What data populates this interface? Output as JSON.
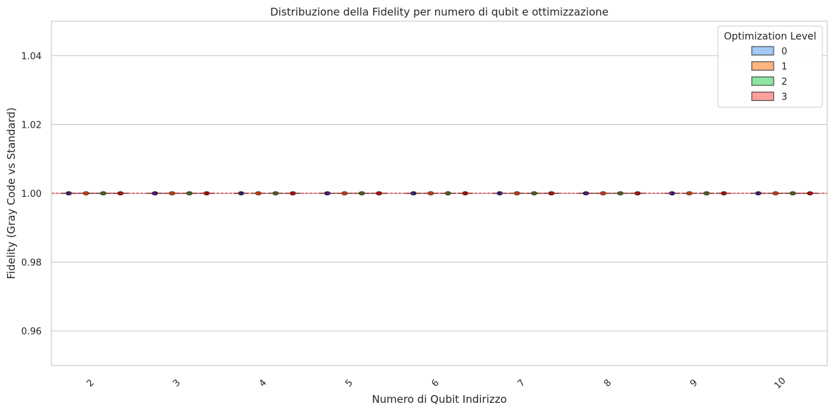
{
  "chart_data": {
    "type": "box",
    "title": "Distribuzione della Fidelity per numero di qubit e ottimizzazione",
    "xlabel": "Numero di Qubit Indirizzo",
    "ylabel": "Fidelity (Gray Code vs Standard)",
    "categories": [
      "2",
      "3",
      "4",
      "5",
      "6",
      "7",
      "8",
      "9",
      "10"
    ],
    "ylim": [
      0.95,
      1.05
    ],
    "yticks": [
      0.96,
      0.98,
      1.0,
      1.02,
      1.04
    ],
    "ytick_labels": [
      "0.96",
      "0.98",
      "1.00",
      "1.02",
      "1.04"
    ],
    "grid": true,
    "legend": {
      "title": "Optimization Level",
      "position": "top-right"
    },
    "reference_line": {
      "y": 1.0,
      "color": "#d62728",
      "style": "dashed"
    },
    "series": [
      {
        "name": "0",
        "values": [
          1.0,
          1.0,
          1.0,
          1.0,
          1.0,
          1.0,
          1.0,
          1.0,
          1.0
        ],
        "box_color": "#a1c9f4",
        "point_color": "#001c7f"
      },
      {
        "name": "1",
        "values": [
          1.0,
          1.0,
          1.0,
          1.0,
          1.0,
          1.0,
          1.0,
          1.0,
          1.0
        ],
        "box_color": "#ffb482",
        "point_color": "#b1400d"
      },
      {
        "name": "2",
        "values": [
          1.0,
          1.0,
          1.0,
          1.0,
          1.0,
          1.0,
          1.0,
          1.0,
          1.0
        ],
        "box_color": "#8de5a1",
        "point_color": "#12711c"
      },
      {
        "name": "3",
        "values": [
          1.0,
          1.0,
          1.0,
          1.0,
          1.0,
          1.0,
          1.0,
          1.0,
          1.0
        ],
        "box_color": "#ff9f9b",
        "point_color": "#8c0800"
      }
    ]
  }
}
